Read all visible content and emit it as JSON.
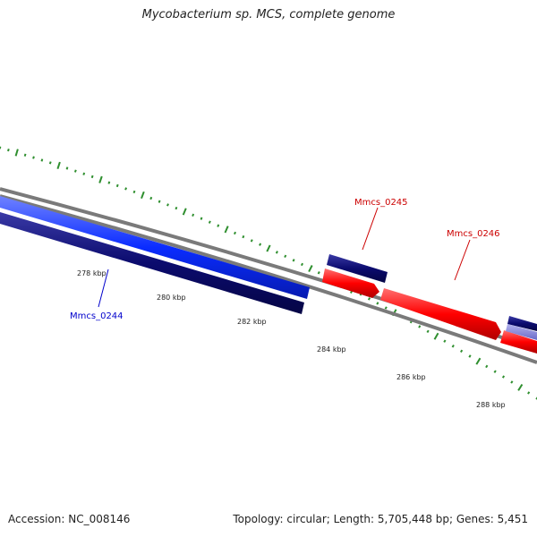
{
  "title": "Mycobacterium sp. MCS, complete genome",
  "footer": {
    "accession": "Accession: NC_008146",
    "summary": "Topology: circular; Length: 5,705,448 bp; Genes: 5,451"
  },
  "colors": {
    "backbone": "#7f7f7f",
    "tick": "#2f8f2f",
    "forward_gene": "#0a2cff",
    "reverse_gene": "#0b0b6e",
    "red_gene": "#ff0000",
    "light_gene": "#7a7ad0"
  },
  "ticks": [
    {
      "label": "278 kbp"
    },
    {
      "label": "280 kbp"
    },
    {
      "label": "282 kbp"
    },
    {
      "label": "284 kbp"
    },
    {
      "label": "286 kbp"
    },
    {
      "label": "288 kbp"
    }
  ],
  "genes": [
    {
      "name": "Mmcs_0244",
      "color": "#0000cc"
    },
    {
      "name": "Mmcs_0245",
      "color": "#cc0000"
    },
    {
      "name": "Mmcs_0246",
      "color": "#cc0000"
    }
  ]
}
